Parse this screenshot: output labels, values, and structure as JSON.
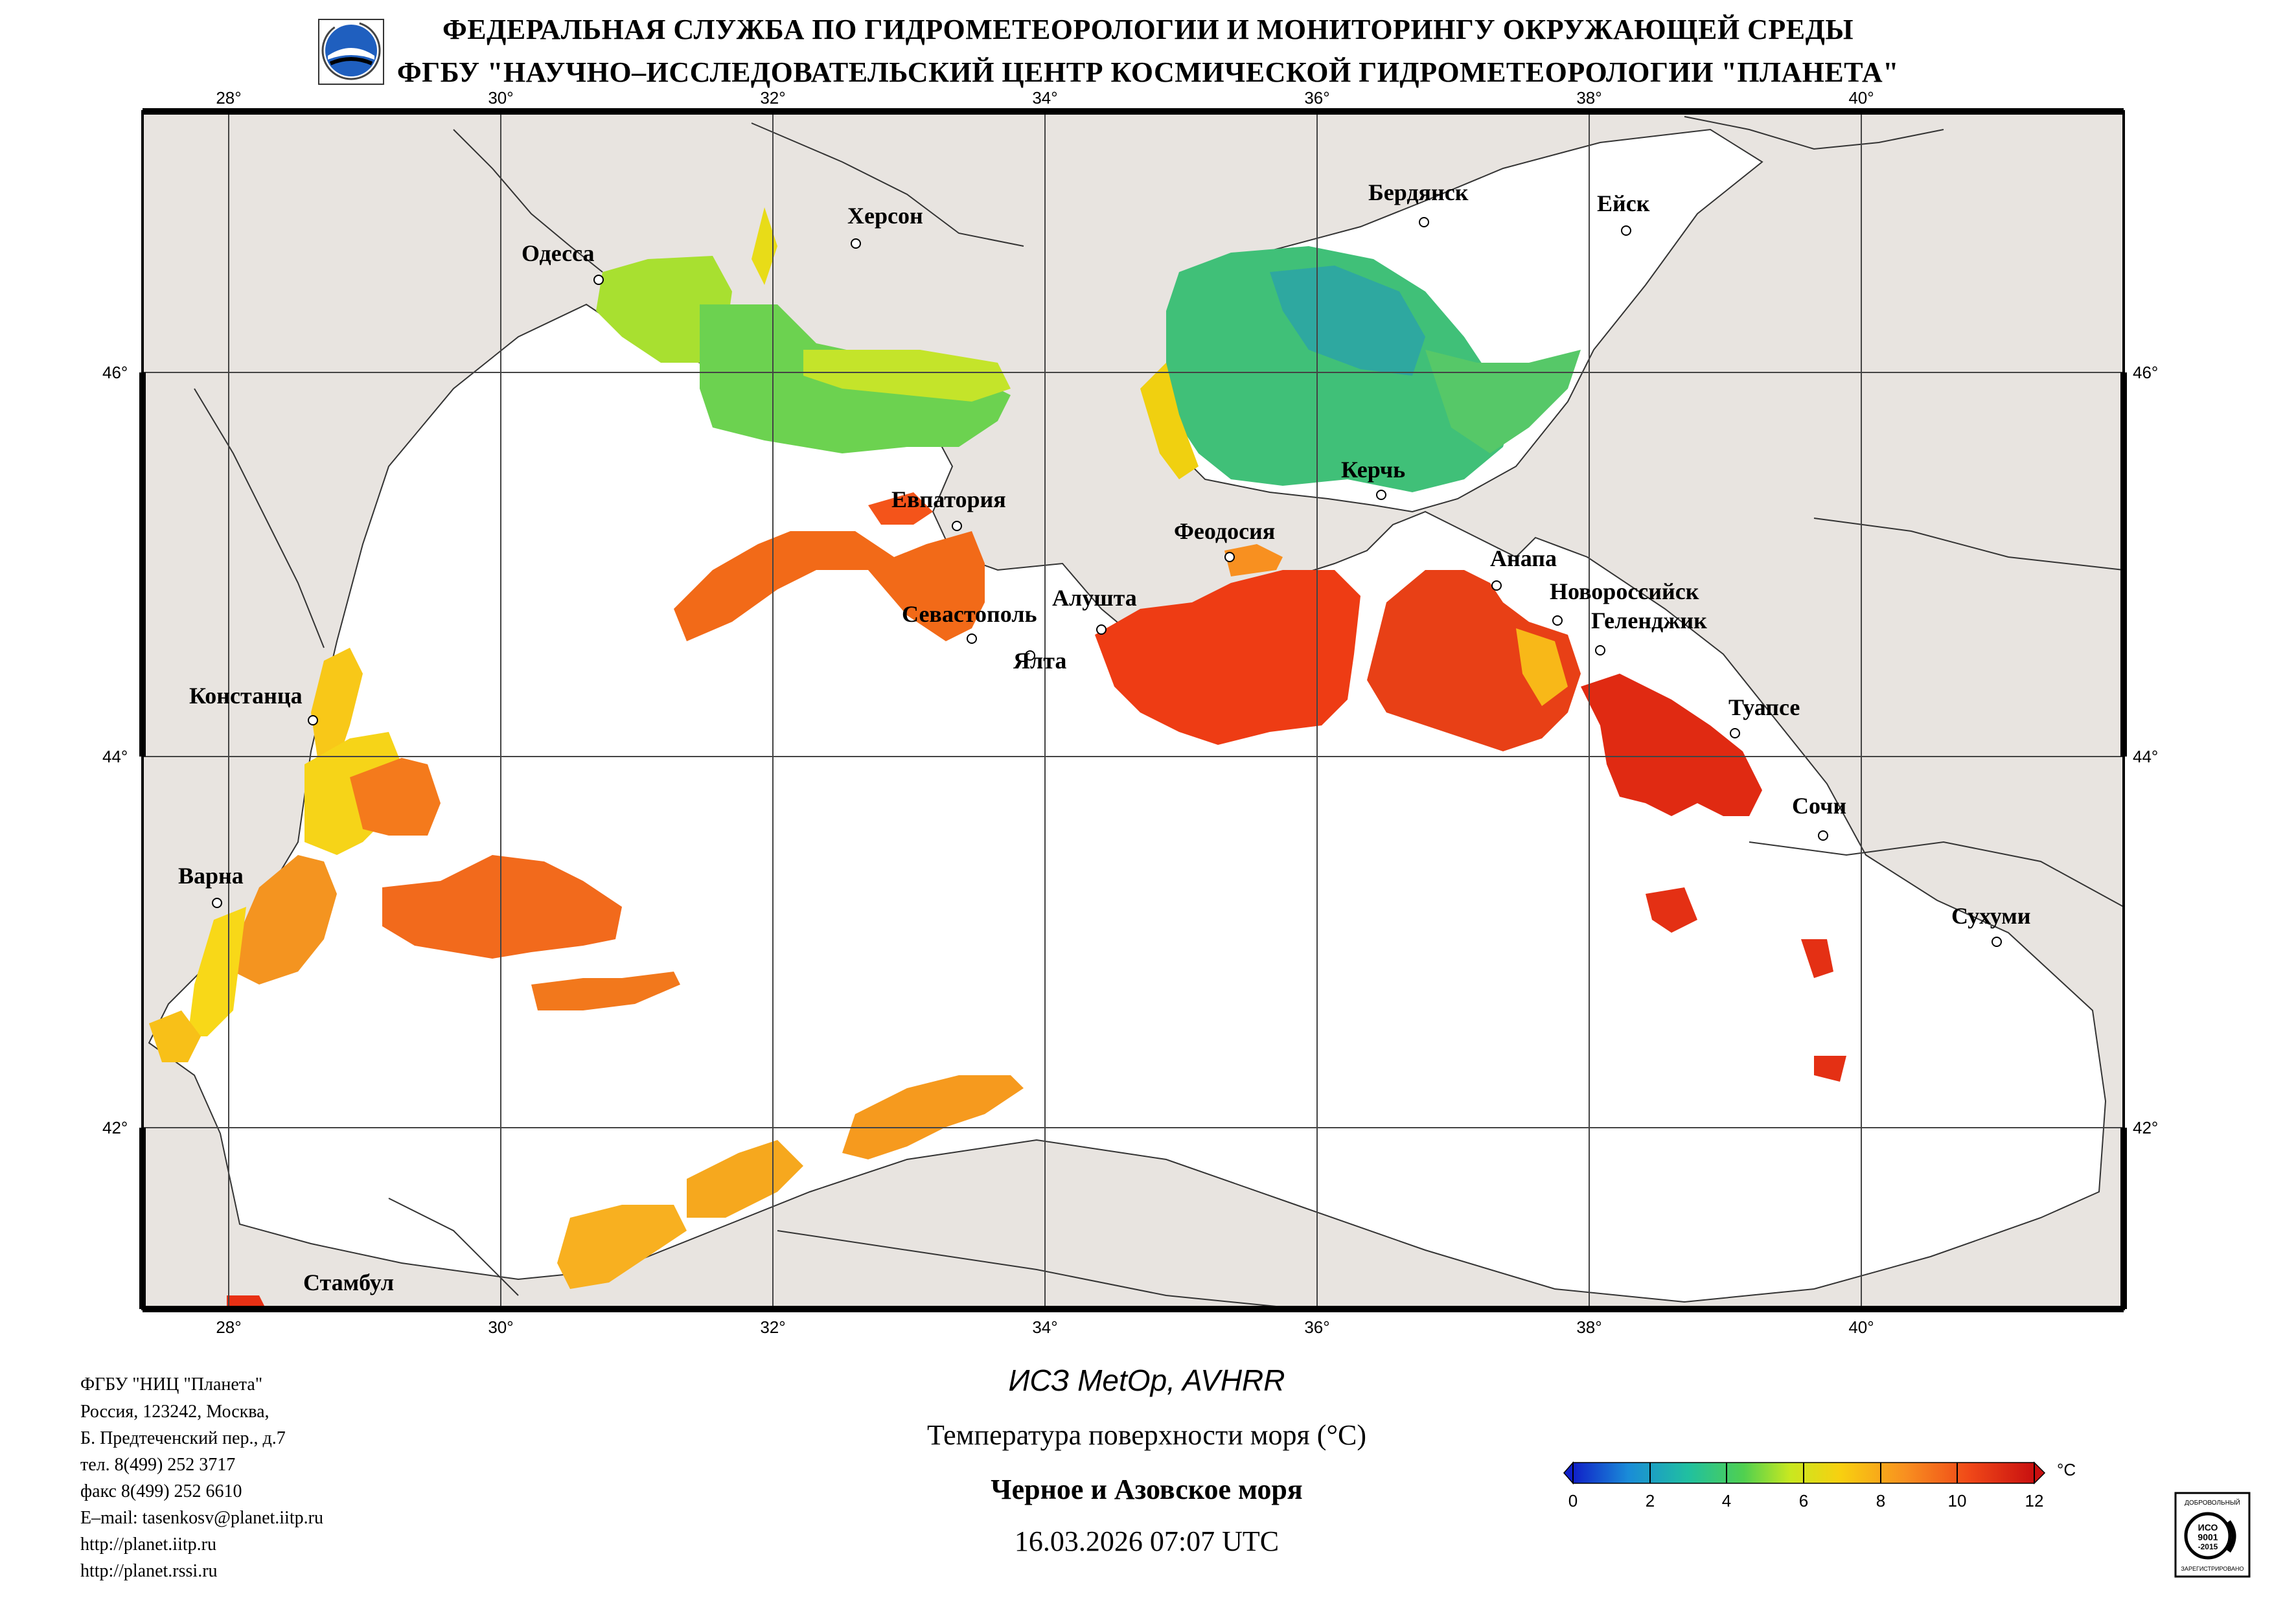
{
  "header": {
    "line1": "ФЕДЕРАЛЬНАЯ СЛУЖБА ПО ГИДРОМЕТЕОРОЛОГИИ И МОНИТОРИНГУ ОКРУЖАЮЩЕЙ СРЕДЫ",
    "line2": "ФГБУ \"НАУЧНО–ИССЛЕДОВАТЕЛЬСКИЙ ЦЕНТР КОСМИЧЕСКОЙ ГИДРОМЕТЕОРОЛОГИИ \"ПЛАНЕТА\""
  },
  "map": {
    "lon_labels": [
      "28°",
      "30°",
      "32°",
      "34°",
      "36°",
      "38°",
      "40°"
    ],
    "lat_labels": [
      "46°",
      "44°",
      "42°"
    ],
    "cities": [
      {
        "name": "Одесса"
      },
      {
        "name": "Херсон"
      },
      {
        "name": "Бердянск"
      },
      {
        "name": "Ейск"
      },
      {
        "name": "Евпатория"
      },
      {
        "name": "Керчь"
      },
      {
        "name": "Феодосия"
      },
      {
        "name": "Анапа"
      },
      {
        "name": "Новороссийск"
      },
      {
        "name": "Геленджик"
      },
      {
        "name": "Алушта"
      },
      {
        "name": "Севастополь"
      },
      {
        "name": "Ялта"
      },
      {
        "name": "Констанца"
      },
      {
        "name": "Туапсе"
      },
      {
        "name": "Сочи"
      },
      {
        "name": "Варна"
      },
      {
        "name": "Сухуми"
      },
      {
        "name": "Стамбул"
      }
    ],
    "colors": {
      "land": "#e8e4e0",
      "sea_no_data": "#ffffff",
      "border": "#000000"
    }
  },
  "footer": {
    "satellite": "ИСЗ MetOp, AVHRR",
    "product": "Температура поверхности моря (°C)",
    "region": "Черное и Азовское моря",
    "datetime": "16.03.2026 07:07 UTC"
  },
  "contact": {
    "lines": [
      "ФГБУ \"НИЦ \"Планета\"",
      "Россия, 123242, Москва,",
      "Б. Предтеченский пер., д.7",
      "тел. 8(499) 252 3717",
      "факс 8(499) 252 6610",
      "E–mail: tasenkosv@planet.iitp.ru",
      "http://planet.iitp.ru",
      "http://planet.rssi.ru"
    ]
  },
  "colorbar": {
    "ticks": [
      "0",
      "2",
      "4",
      "6",
      "8",
      "10",
      "12"
    ],
    "unit": "°C",
    "min": 0,
    "max": 12,
    "stops": [
      "#1020c8",
      "#1a8cd8",
      "#20c0a0",
      "#50d050",
      "#c8e820",
      "#f8d010",
      "#f89020",
      "#f04818",
      "#c81010"
    ]
  },
  "iso_badge": {
    "top": "ДОБРОВОЛЬНЫЙ",
    "center": "ИСО 9001 -2015",
    "bottom": "ЗАРЕГИСТРИРОВАНО"
  }
}
